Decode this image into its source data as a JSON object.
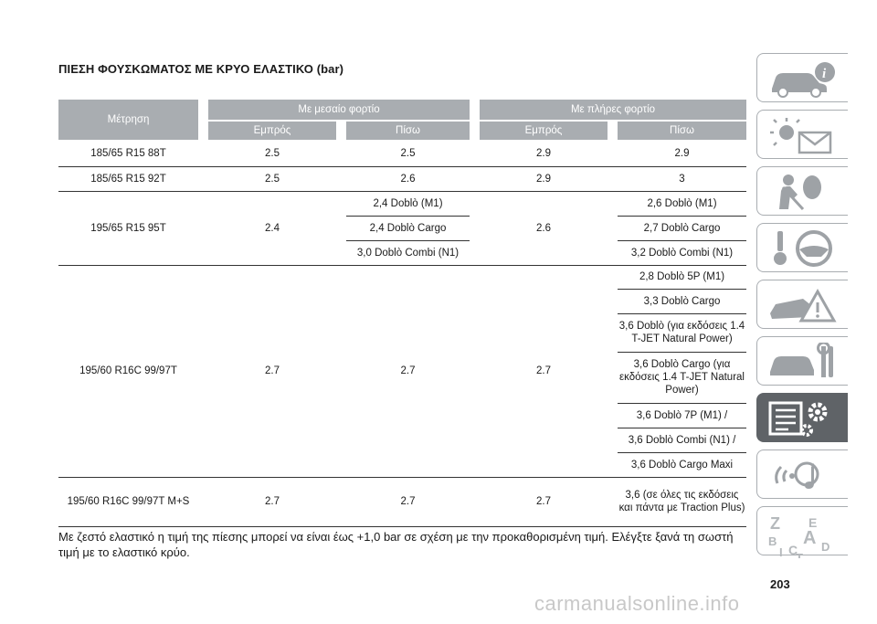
{
  "title": "ΠΙΕΣΗ ΦΟΥΣΚΩΜΑΤΟΣ ΜΕ ΚΡΥΟ ΕΛΑΣΤΙΚΟ (bar)",
  "header": {
    "measure": "Μέτρηση",
    "avg_load": "Με μεσαίο φορτίο",
    "full_load": "Με πλήρες φορτίο",
    "front": "Εμπρός",
    "rear": "Πίσω"
  },
  "rows": [
    {
      "tyre": "185/65 R15 88T",
      "avg_front": "2.5",
      "avg_rear": "2.5",
      "full_front": "2.9",
      "full_rear": "2.9"
    },
    {
      "tyre": "185/65 R15 92T",
      "avg_front": "2.5",
      "avg_rear": "2.6",
      "full_front": "2.9",
      "full_rear": "3"
    },
    {
      "tyre": "195/65 R15 95T",
      "avg_front": "2.4",
      "avg_rear_list": [
        "2,4 Doblò (M1)",
        "2,4 Doblò Cargo",
        "3,0 Doblò Combi (N1)"
      ],
      "full_front": "2.6",
      "full_rear_list": [
        "2,6 Doblò (M1)",
        "2,7 Doblò Cargo",
        "3,2 Doblò Combi (N1)"
      ]
    },
    {
      "tyre": "195/60 R16C 99/97T",
      "avg_front": "2.7",
      "avg_rear": "2.7",
      "full_front": "2.7",
      "full_rear_list": [
        "2,8 Doblò 5P (M1)",
        "3,3 Doblò Cargo",
        "3,6 Doblò (για εκδόσεις 1.4 T-JET Natural Power)",
        "3,6 Doblò Cargo (για εκδόσεις 1.4 T-JET Natural Power)",
        "3,6 Doblò 7P (M1) /",
        "3,6 Doblò Combi (N1) /",
        "3,6 Doblò Cargo Maxi"
      ]
    },
    {
      "tyre": "195/60 R16C 99/97T M+S",
      "avg_front": "2.7",
      "avg_rear": "2.7",
      "full_front": "2.7",
      "full_rear": "3,6 (σε όλες τις εκδόσεις και πάντα με Traction Plus)"
    }
  ],
  "note": "Με ζεστό ελαστικό η τιμή της πίεσης μπορεί να είναι έως +1,0 bar σε σχέση με την προκαθορισμένη τιμή. Ελέγξτε ξανά τη σωστή τιμή με το ελαστικό κρύο.",
  "page_number": "203",
  "watermark": "carmanualsonline.info",
  "tabs": [
    {
      "icon": "car-info-icon"
    },
    {
      "icon": "warning-lights-message-icon"
    },
    {
      "icon": "airbag-safety-icon"
    },
    {
      "icon": "steering-wheel-key-icon"
    },
    {
      "icon": "emergency-car-icon"
    },
    {
      "icon": "car-maintenance-icon"
    },
    {
      "icon": "technical-data-icon",
      "active": true
    },
    {
      "icon": "multimedia-icon"
    },
    {
      "icon": "index-letters-icon"
    }
  ],
  "colors": {
    "header_bg": "#a9adb1",
    "active_tab": "#5f6367"
  }
}
